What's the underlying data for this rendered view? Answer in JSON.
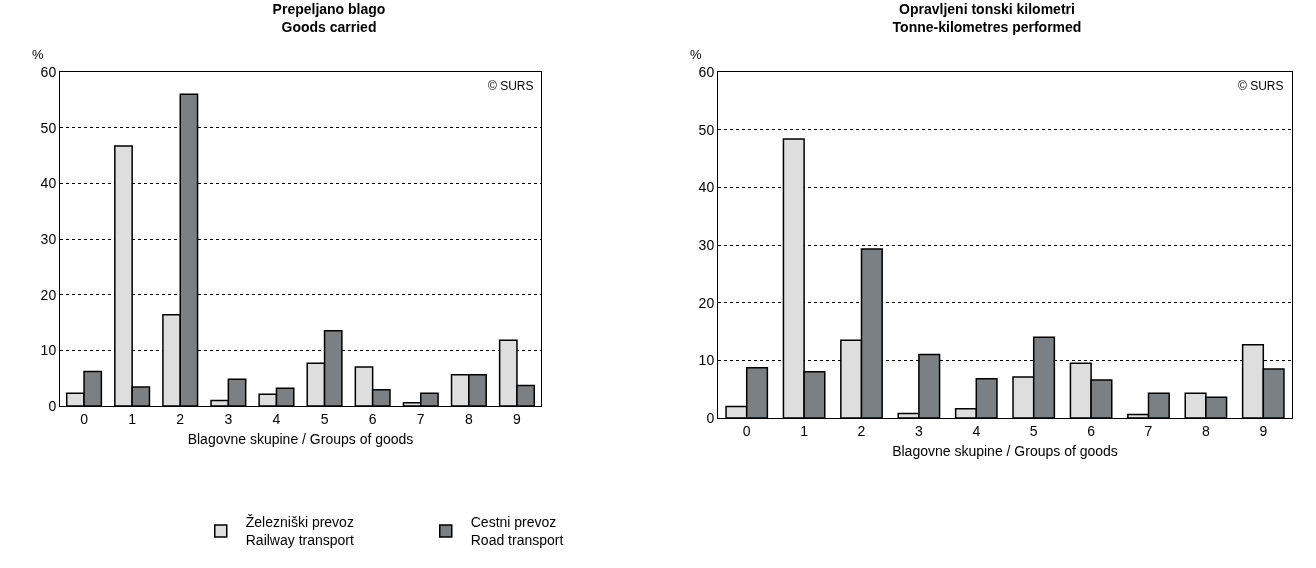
{
  "chart_data": [
    {
      "type": "bar",
      "title": "Prepeljano blago\nGoods carried",
      "xlabel": "Blagovne skupine / Groups of goods",
      "ylabel": "%",
      "categories": [
        "0",
        "1",
        "2",
        "3",
        "4",
        "5",
        "6",
        "7",
        "8",
        "9"
      ],
      "series": [
        {
          "name": "Železniški prevoz\nRailway transport",
          "color": "#dedede",
          "values": [
            2.3,
            46.7,
            16.4,
            1.0,
            2.1,
            7.7,
            7.0,
            0.6,
            5.6,
            11.8
          ]
        },
        {
          "name": "Cestni prevoz\nRoad transport",
          "color": "#7b8084",
          "values": [
            6.2,
            3.4,
            56.0,
            4.8,
            3.2,
            13.5,
            2.9,
            2.3,
            5.6,
            3.7
          ]
        }
      ],
      "ylim": [
        0,
        60
      ],
      "yticks": [
        0,
        10,
        20,
        30,
        40,
        50,
        60
      ],
      "grid": "y",
      "legend": "bottom",
      "annotations": [
        "© SURS"
      ]
    },
    {
      "type": "bar",
      "title": "Opravljeni tonski kilometri\nTonne-kilometres performed",
      "xlabel": "Blagovne skupine / Groups of goods",
      "ylabel": "%",
      "categories": [
        "0",
        "1",
        "2",
        "3",
        "4",
        "5",
        "6",
        "7",
        "8",
        "9"
      ],
      "series": [
        {
          "color": "#dedede",
          "values": [
            2.0,
            48.4,
            13.5,
            0.8,
            1.6,
            7.1,
            9.5,
            0.6,
            4.3,
            12.7
          ]
        },
        {
          "color": "#7b8084",
          "values": [
            8.7,
            8.0,
            29.3,
            11.0,
            6.8,
            14.0,
            6.6,
            4.3,
            3.6,
            8.5
          ]
        }
      ],
      "ylim": [
        0,
        60
      ],
      "yticks": [
        0,
        10,
        20,
        30,
        40,
        50,
        60
      ],
      "grid": "y",
      "legend": false,
      "annotations": [
        "© SURS"
      ]
    }
  ]
}
